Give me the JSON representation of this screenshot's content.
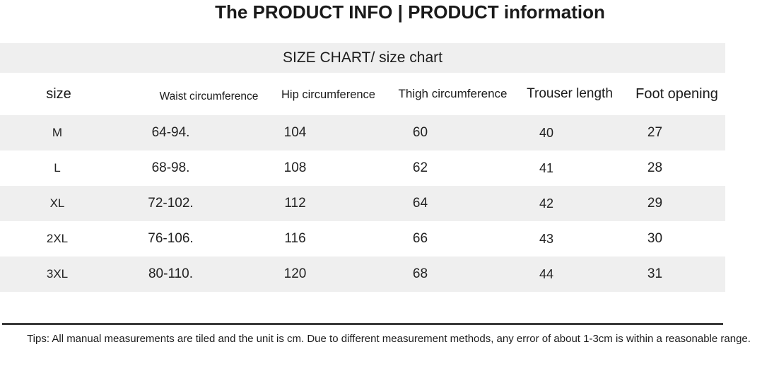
{
  "header": {
    "title": "The PRODUCT INFO | PRODUCT information"
  },
  "size_chart": {
    "heading": "SIZE CHART/ size chart",
    "columns": {
      "size": "size",
      "waist": "Waist circumference",
      "hip": "Hip circumference",
      "thigh": "Thigh circumference",
      "trouser": "Trouser length",
      "foot": "Foot opening"
    },
    "rows": [
      {
        "size": "M",
        "waist": "64-94.",
        "hip": "104",
        "thigh": "60",
        "trouser": "40",
        "foot": "27"
      },
      {
        "size": "L",
        "waist": "68-98.",
        "hip": "108",
        "thigh": "62",
        "trouser": "41",
        "foot": "28"
      },
      {
        "size": "XL",
        "waist": "72-102.",
        "hip": "112",
        "thigh": "64",
        "trouser": "42",
        "foot": "29"
      },
      {
        "size": "2XL",
        "waist": "76-106.",
        "hip": "116",
        "thigh": "66",
        "trouser": "43",
        "foot": "30"
      },
      {
        "size": "3XL",
        "waist": "80-110.",
        "hip": "120",
        "thigh": "68",
        "trouser": "44",
        "foot": "31"
      }
    ],
    "unit": "cm"
  },
  "footer": {
    "tips": "Tips: All manual measurements are tiled and the unit is cm. Due to different measurement methods, any error of about 1-3cm is within a reasonable range."
  },
  "colors": {
    "background": "#ffffff",
    "stripe_gray": "#efefef",
    "divider": "#3a3a3a",
    "text": "#1e1e1e"
  }
}
